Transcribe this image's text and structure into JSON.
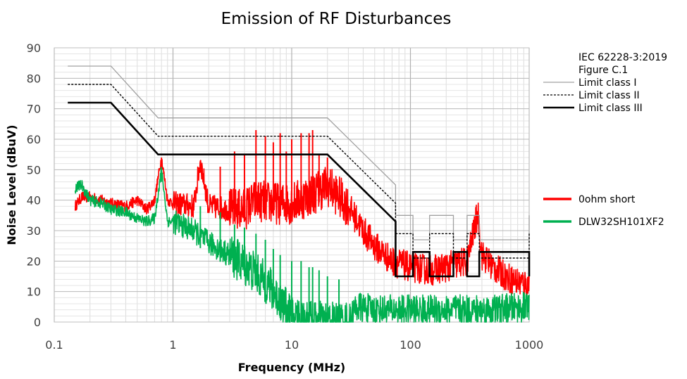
{
  "chart_data": {
    "type": "line",
    "title": "Emission of RF Disturbances",
    "xlabel": "Frequency (MHz)",
    "ylabel": "Noise Level (dBuV)",
    "x_scale": "log",
    "xlim": [
      0.1,
      1000
    ],
    "ylim": [
      0,
      90
    ],
    "x_ticks": [
      0.1,
      1,
      10,
      100,
      1000
    ],
    "x_tick_labels": [
      "0.1",
      "1",
      "10",
      "100",
      "1000"
    ],
    "y_ticks": [
      0,
      10,
      20,
      30,
      40,
      50,
      60,
      70,
      80,
      90
    ],
    "grid": true,
    "legend_limits": {
      "placement": "top-right",
      "header": [
        "IEC 62228-3:2019",
        "Figure C.1"
      ]
    },
    "legend_measurements": {
      "placement": "right"
    },
    "limit_series": [
      {
        "name": "Limit class I",
        "color": "#a0a0a0",
        "style": "solid",
        "points": [
          [
            0.13,
            84
          ],
          [
            0.3,
            84
          ],
          [
            0.75,
            67
          ],
          [
            20,
            67
          ],
          [
            75,
            45
          ],
          [
            75,
            35
          ],
          [
            105,
            35
          ],
          [
            105,
            27
          ],
          [
            145,
            27
          ],
          [
            145,
            35
          ],
          [
            230,
            35
          ],
          [
            230,
            27
          ],
          [
            300,
            27
          ],
          [
            300,
            35
          ],
          [
            380,
            35
          ],
          [
            380,
            27
          ],
          [
            1000,
            27
          ],
          [
            1000,
            35
          ]
        ]
      },
      {
        "name": "Limit class II",
        "color": "#000000",
        "style": "dashed",
        "points": [
          [
            0.13,
            78
          ],
          [
            0.3,
            78
          ],
          [
            0.75,
            61
          ],
          [
            20,
            61
          ],
          [
            75,
            39
          ],
          [
            75,
            29
          ],
          [
            105,
            29
          ],
          [
            105,
            21
          ],
          [
            145,
            21
          ],
          [
            145,
            29
          ],
          [
            230,
            29
          ],
          [
            230,
            21
          ],
          [
            300,
            21
          ],
          [
            300,
            29
          ],
          [
            380,
            29
          ],
          [
            380,
            21
          ],
          [
            1000,
            21
          ],
          [
            1000,
            29
          ]
        ]
      },
      {
        "name": "Limit class III",
        "color": "#000000",
        "style": "solid-bold",
        "points": [
          [
            0.13,
            72
          ],
          [
            0.3,
            72
          ],
          [
            0.75,
            55
          ],
          [
            20,
            55
          ],
          [
            75,
            33
          ],
          [
            75,
            15
          ],
          [
            105,
            15
          ],
          [
            105,
            23
          ],
          [
            145,
            23
          ],
          [
            145,
            15
          ],
          [
            230,
            15
          ],
          [
            230,
            23
          ],
          [
            300,
            23
          ],
          [
            300,
            15
          ],
          [
            380,
            15
          ],
          [
            380,
            23
          ],
          [
            1000,
            23
          ],
          [
            1000,
            15
          ]
        ]
      }
    ],
    "series": [
      {
        "name": "0ohm short",
        "color": "#ff0000",
        "points": [
          [
            0.15,
            38
          ],
          [
            0.17,
            41
          ],
          [
            0.2,
            41
          ],
          [
            0.25,
            40
          ],
          [
            0.3,
            39
          ],
          [
            0.4,
            38
          ],
          [
            0.5,
            40
          ],
          [
            0.6,
            37
          ],
          [
            0.7,
            40
          ],
          [
            0.8,
            54
          ],
          [
            0.9,
            40
          ],
          [
            1,
            39
          ],
          [
            1.5,
            38
          ],
          [
            1.7,
            53
          ],
          [
            2,
            38
          ],
          [
            3,
            37
          ],
          [
            4,
            37
          ],
          [
            5,
            40
          ],
          [
            7,
            39
          ],
          [
            10,
            39
          ],
          [
            15,
            42
          ],
          [
            20,
            45
          ],
          [
            30,
            38
          ],
          [
            40,
            30
          ],
          [
            50,
            25
          ],
          [
            70,
            20
          ],
          [
            100,
            18
          ],
          [
            150,
            17
          ],
          [
            200,
            18
          ],
          [
            300,
            20
          ],
          [
            370,
            36
          ],
          [
            400,
            22
          ],
          [
            500,
            18
          ],
          [
            700,
            14
          ],
          [
            1000,
            12
          ]
        ],
        "peaks": [
          [
            0.8,
            54
          ],
          [
            1.7,
            53
          ],
          [
            2.5,
            51
          ],
          [
            3,
            43
          ],
          [
            3.3,
            56
          ],
          [
            4,
            55
          ],
          [
            5,
            63
          ],
          [
            6,
            61
          ],
          [
            7,
            59
          ],
          [
            8,
            62
          ],
          [
            9,
            56
          ],
          [
            10,
            60
          ],
          [
            12,
            62
          ],
          [
            14,
            62
          ],
          [
            15,
            63
          ],
          [
            17,
            55
          ],
          [
            20,
            54
          ],
          [
            370,
            36
          ]
        ]
      },
      {
        "name": "DLW32SH101XF2",
        "color": "#00b050",
        "points": [
          [
            0.15,
            44
          ],
          [
            0.17,
            45
          ],
          [
            0.2,
            40
          ],
          [
            0.25,
            39
          ],
          [
            0.3,
            37
          ],
          [
            0.4,
            36
          ],
          [
            0.5,
            34
          ],
          [
            0.6,
            33
          ],
          [
            0.7,
            34
          ],
          [
            0.8,
            50
          ],
          [
            0.9,
            33
          ],
          [
            1,
            33
          ],
          [
            1.5,
            30
          ],
          [
            2,
            26
          ],
          [
            3,
            22
          ],
          [
            4,
            19
          ],
          [
            5,
            16
          ],
          [
            6,
            13
          ],
          [
            7,
            10
          ],
          [
            8,
            7
          ],
          [
            9,
            4
          ],
          [
            10,
            2
          ],
          [
            15,
            0
          ],
          [
            20,
            0
          ],
          [
            30,
            0
          ],
          [
            35,
            5
          ],
          [
            50,
            4
          ],
          [
            100,
            4
          ],
          [
            200,
            4
          ],
          [
            500,
            4
          ],
          [
            1000,
            5
          ]
        ],
        "peaks": [
          [
            0.8,
            50
          ],
          [
            1.7,
            38
          ],
          [
            2.5,
            36
          ],
          [
            3.3,
            32
          ],
          [
            4,
            31
          ],
          [
            5,
            29
          ],
          [
            6,
            27
          ],
          [
            7,
            24
          ],
          [
            8,
            22
          ],
          [
            10,
            20
          ],
          [
            12,
            20
          ],
          [
            14,
            18
          ],
          [
            15,
            18
          ],
          [
            17,
            17
          ],
          [
            20,
            15
          ],
          [
            25,
            14
          ]
        ]
      }
    ]
  }
}
